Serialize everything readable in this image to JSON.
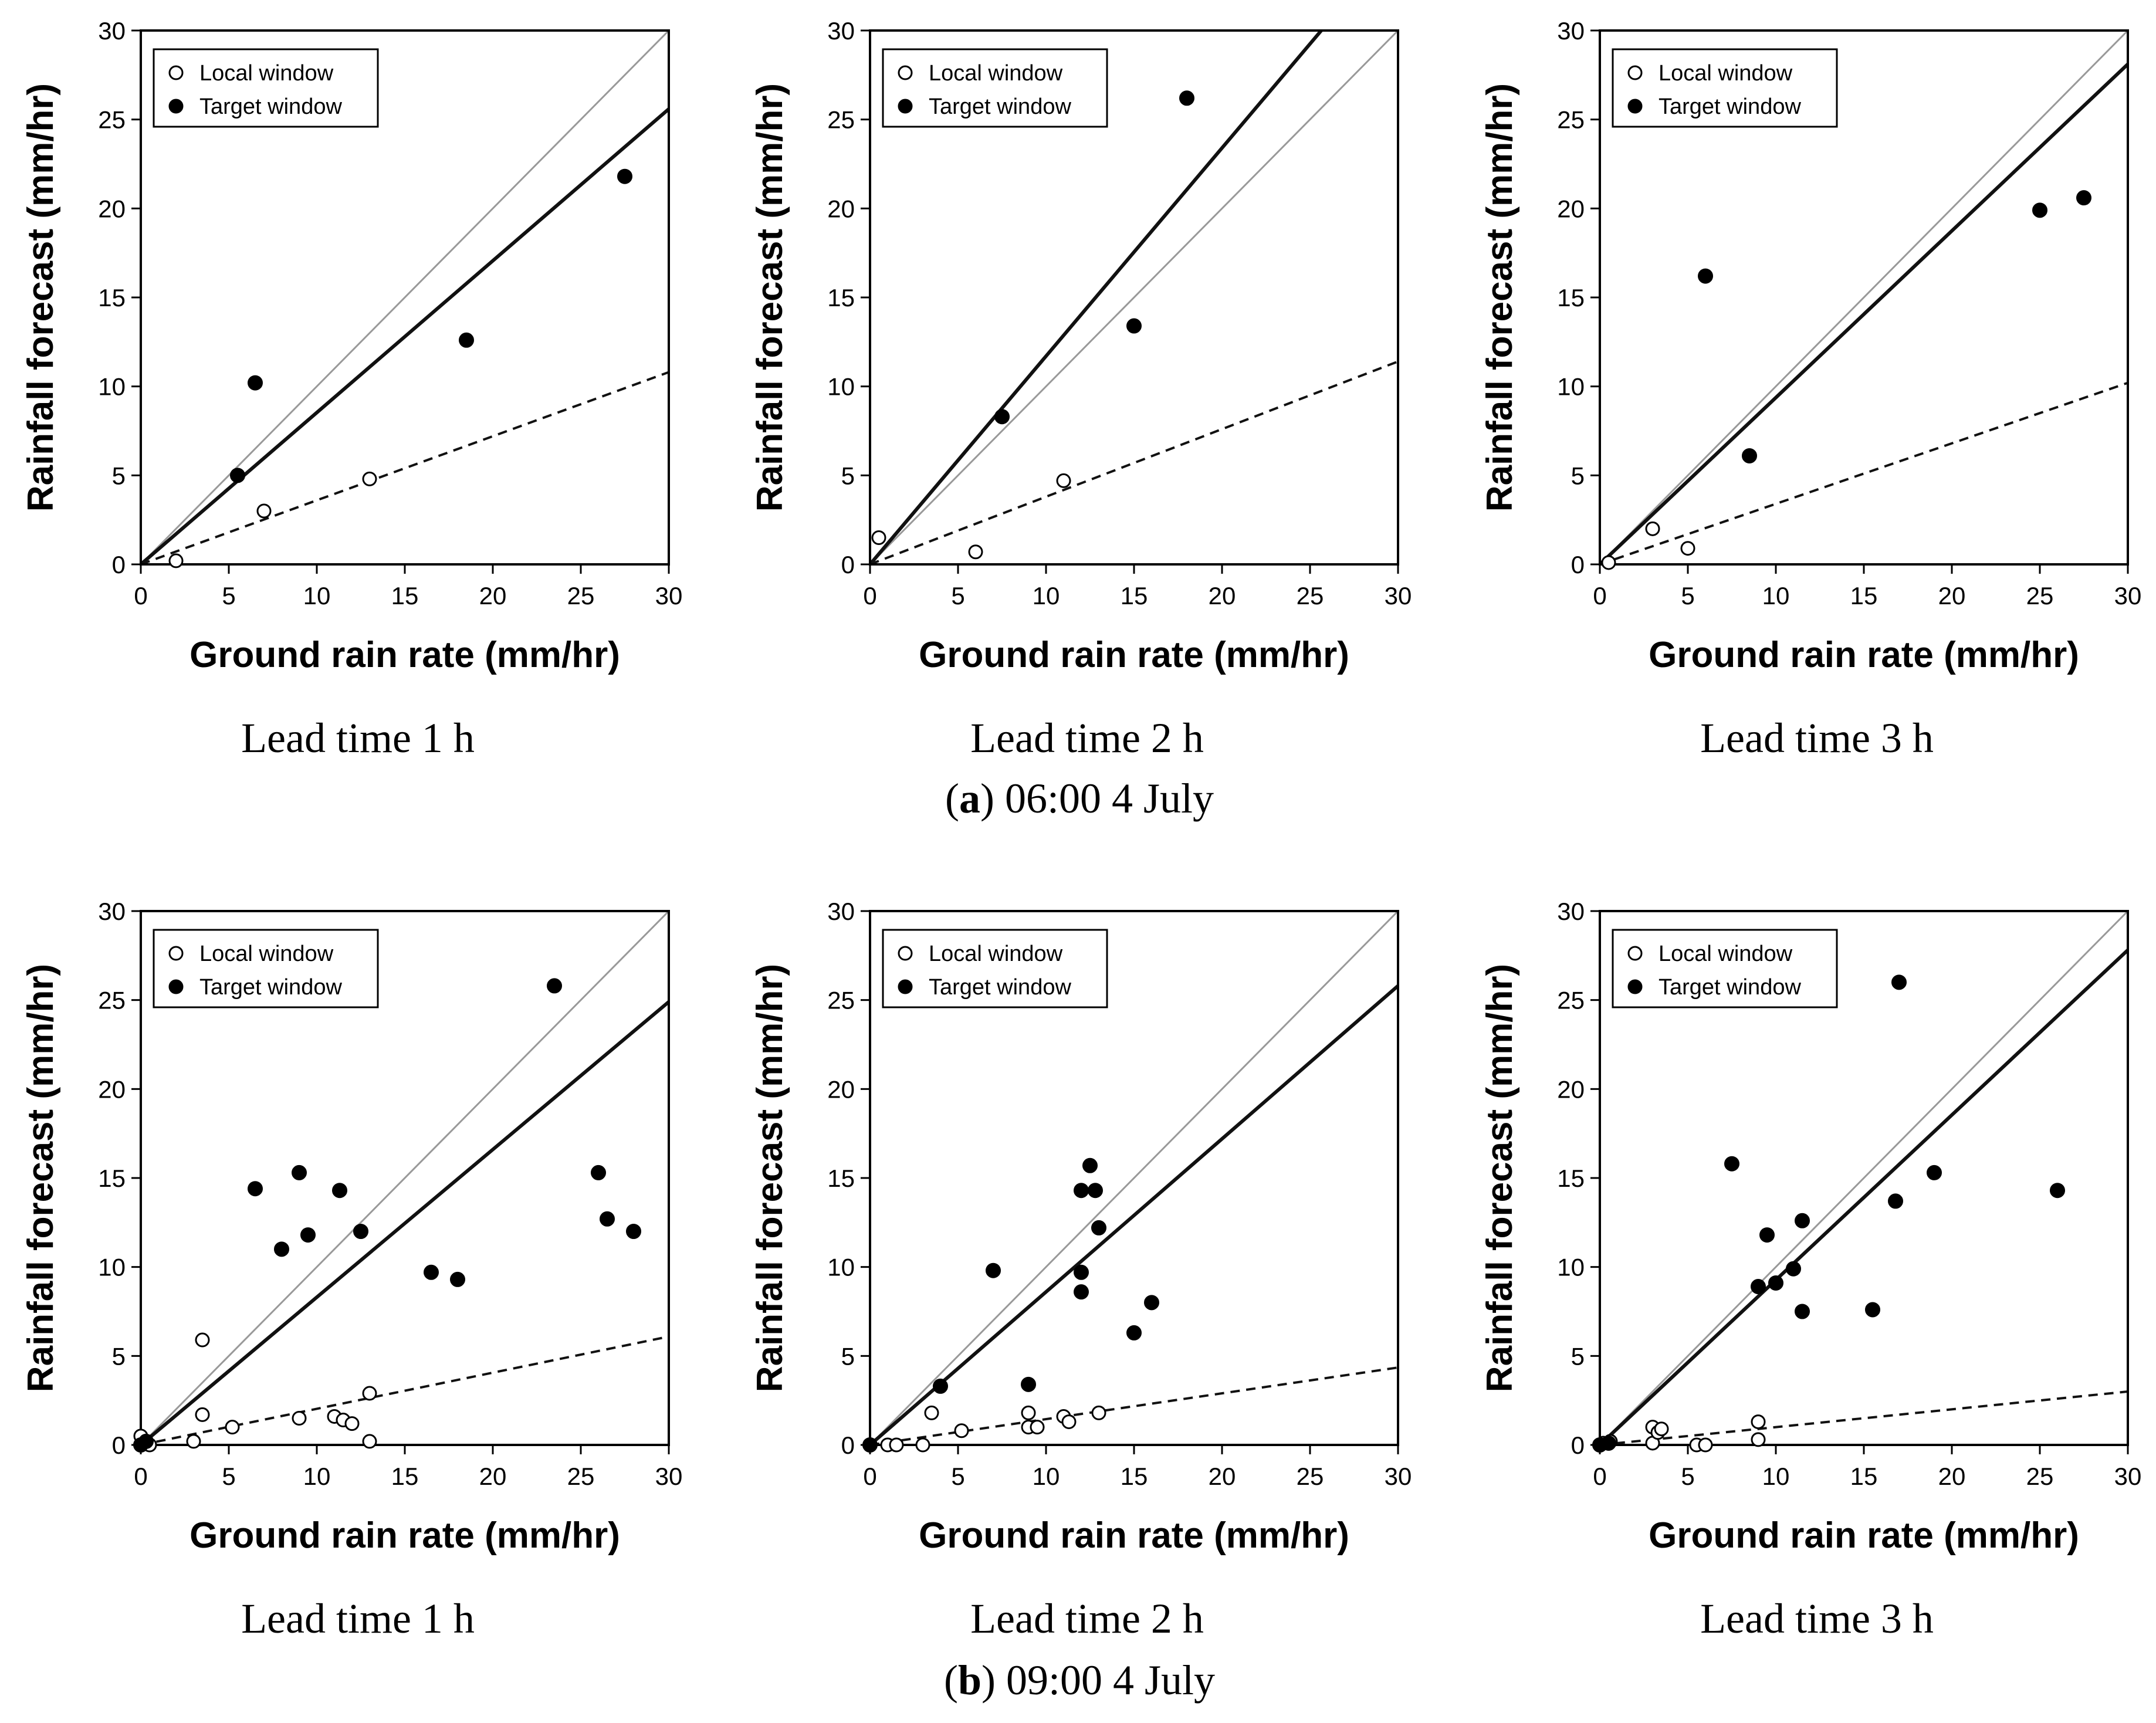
{
  "chart_data": [
    {
      "type": "scatter",
      "group": "a",
      "panel_label": "Lead time 1 h",
      "xlabel": "Ground rain rate (mm/hr)",
      "ylabel": "Rainfall forecast (mm/hr)",
      "xlim": [
        0,
        30
      ],
      "ylim": [
        0,
        30
      ],
      "xticks": [
        "0",
        "5",
        "10",
        "15",
        "20",
        "25",
        "30"
      ],
      "yticks": [
        "0",
        "5",
        "10",
        "15",
        "20",
        "25",
        "30"
      ],
      "legend_position": "top-left",
      "series": [
        {
          "name": "Local window",
          "marker": "open-circle",
          "points": [
            [
              2,
              0.2
            ],
            [
              7,
              3
            ],
            [
              13,
              4.8
            ]
          ]
        },
        {
          "name": "Target window",
          "marker": "filled-circle",
          "points": [
            [
              5.5,
              5
            ],
            [
              6.5,
              10.2
            ],
            [
              18.5,
              12.6
            ],
            [
              27.5,
              21.8
            ]
          ]
        }
      ],
      "lines": [
        {
          "name": "1:1 line",
          "style": "thin-gray",
          "slope": 1
        },
        {
          "name": "Target window fit",
          "style": "thick-solid",
          "slope": 0.853
        },
        {
          "name": "Local window fit",
          "style": "dashed",
          "slope": 0.36
        }
      ]
    },
    {
      "type": "scatter",
      "group": "a",
      "panel_label": "Lead time 2 h",
      "xlabel": "Ground rain rate (mm/hr)",
      "ylabel": "Rainfall forecast (mm/hr)",
      "xlim": [
        0,
        30
      ],
      "ylim": [
        0,
        30
      ],
      "xticks": [
        "0",
        "5",
        "10",
        "15",
        "20",
        "25",
        "30"
      ],
      "yticks": [
        "0",
        "5",
        "10",
        "15",
        "20",
        "25",
        "30"
      ],
      "legend_position": "top-left",
      "series": [
        {
          "name": "Local window",
          "marker": "open-circle",
          "points": [
            [
              0.5,
              1.5
            ],
            [
              6,
              0.7
            ],
            [
              11,
              4.7
            ]
          ]
        },
        {
          "name": "Target window",
          "marker": "filled-circle",
          "points": [
            [
              7.5,
              8.3
            ],
            [
              15,
              13.4
            ],
            [
              18,
              26.2
            ]
          ]
        }
      ],
      "lines": [
        {
          "name": "1:1 line",
          "style": "thin-gray",
          "slope": 1
        },
        {
          "name": "Target window fit",
          "style": "thick-solid",
          "slope": 1.17
        },
        {
          "name": "Local window fit",
          "style": "dashed",
          "slope": 0.38
        }
      ]
    },
    {
      "type": "scatter",
      "group": "a",
      "panel_label": "Lead time 3 h",
      "xlabel": "Ground rain rate (mm/hr)",
      "ylabel": "Rainfall forecast (mm/hr)",
      "xlim": [
        0,
        30
      ],
      "ylim": [
        0,
        30
      ],
      "xticks": [
        "0",
        "5",
        "10",
        "15",
        "20",
        "25",
        "30"
      ],
      "yticks": [
        "0",
        "5",
        "10",
        "15",
        "20",
        "25",
        "30"
      ],
      "legend_position": "top-left",
      "series": [
        {
          "name": "Local window",
          "marker": "open-circle",
          "points": [
            [
              0.5,
              0.1
            ],
            [
              3,
              2
            ],
            [
              5,
              0.9
            ]
          ]
        },
        {
          "name": "Target window",
          "marker": "filled-circle",
          "points": [
            [
              6,
              16.2
            ],
            [
              8.5,
              6.1
            ],
            [
              25,
              19.9
            ],
            [
              27.5,
              20.6
            ]
          ]
        }
      ],
      "lines": [
        {
          "name": "1:1 line",
          "style": "thin-gray",
          "slope": 1
        },
        {
          "name": "Target window fit",
          "style": "thick-solid",
          "slope": 0.937
        },
        {
          "name": "Local window fit",
          "style": "dashed",
          "slope": 0.34
        }
      ]
    },
    {
      "type": "scatter",
      "group": "b",
      "panel_label": "Lead time 1 h",
      "xlabel": "Ground rain rate (mm/hr)",
      "ylabel": "Rainfall forecast (mm/hr)",
      "xlim": [
        0,
        30
      ],
      "ylim": [
        0,
        30
      ],
      "xticks": [
        "0",
        "5",
        "10",
        "15",
        "20",
        "25",
        "30"
      ],
      "yticks": [
        "0",
        "5",
        "10",
        "15",
        "20",
        "25",
        "30"
      ],
      "legend_position": "top-left",
      "series": [
        {
          "name": "Local window",
          "marker": "open-circle",
          "points": [
            [
              0,
              0.5
            ],
            [
              0.5,
              0
            ],
            [
              3,
              0.2
            ],
            [
              3.5,
              5.9
            ],
            [
              3.5,
              1.7
            ],
            [
              5.2,
              1
            ],
            [
              9,
              1.5
            ],
            [
              11,
              1.6
            ],
            [
              11.5,
              1.4
            ],
            [
              12,
              1.2
            ],
            [
              13,
              2.9
            ],
            [
              13,
              0.2
            ]
          ]
        },
        {
          "name": "Target window",
          "marker": "filled-circle",
          "points": [
            [
              0,
              0
            ],
            [
              0.3,
              0.2
            ],
            [
              6.5,
              14.4
            ],
            [
              8,
              11
            ],
            [
              9,
              15.3
            ],
            [
              9.5,
              11.8
            ],
            [
              11.3,
              14.3
            ],
            [
              12.5,
              12
            ],
            [
              16.5,
              9.7
            ],
            [
              18,
              9.3
            ],
            [
              23.5,
              25.8
            ],
            [
              26,
              15.3
            ],
            [
              26.5,
              12.7
            ],
            [
              28,
              12
            ]
          ]
        }
      ],
      "lines": [
        {
          "name": "1:1 line",
          "style": "thin-gray",
          "slope": 1
        },
        {
          "name": "Target window fit",
          "style": "thick-solid",
          "slope": 0.83
        },
        {
          "name": "Local window fit",
          "style": "dashed",
          "slope": 0.203
        }
      ]
    },
    {
      "type": "scatter",
      "group": "b",
      "panel_label": "Lead time 2 h",
      "xlabel": "Ground rain rate (mm/hr)",
      "ylabel": "Rainfall forecast (mm/hr)",
      "xlim": [
        0,
        30
      ],
      "ylim": [
        0,
        30
      ],
      "xticks": [
        "0",
        "5",
        "10",
        "15",
        "20",
        "25",
        "30"
      ],
      "yticks": [
        "0",
        "5",
        "10",
        "15",
        "20",
        "25",
        "30"
      ],
      "legend_position": "top-left",
      "series": [
        {
          "name": "Local window",
          "marker": "open-circle",
          "points": [
            [
              0,
              0
            ],
            [
              1,
              0
            ],
            [
              1.5,
              0
            ],
            [
              3,
              0
            ],
            [
              3.5,
              1.8
            ],
            [
              5.2,
              0.8
            ],
            [
              9,
              1.8
            ],
            [
              9,
              1
            ],
            [
              9.5,
              1
            ],
            [
              11,
              1.6
            ],
            [
              11.3,
              1.3
            ],
            [
              13,
              1.8
            ]
          ]
        },
        {
          "name": "Target window",
          "marker": "filled-circle",
          "points": [
            [
              0,
              0
            ],
            [
              4,
              3.3
            ],
            [
              7,
              9.8
            ],
            [
              9,
              3.4
            ],
            [
              12,
              14.3
            ],
            [
              12,
              9.7
            ],
            [
              12,
              8.6
            ],
            [
              12.5,
              15.7
            ],
            [
              12.8,
              14.3
            ],
            [
              13,
              12.2
            ],
            [
              15,
              6.3
            ],
            [
              16,
              8
            ]
          ]
        }
      ],
      "lines": [
        {
          "name": "1:1 line",
          "style": "thin-gray",
          "slope": 1
        },
        {
          "name": "Target window fit",
          "style": "thick-solid",
          "slope": 0.86
        },
        {
          "name": "Local window fit",
          "style": "dashed",
          "slope": 0.145
        }
      ]
    },
    {
      "type": "scatter",
      "group": "b",
      "panel_label": "Lead time 3 h",
      "xlabel": "Ground rain rate (mm/hr)",
      "ylabel": "Rainfall forecast (mm/hr)",
      "xlim": [
        0,
        30
      ],
      "ylim": [
        0,
        30
      ],
      "xticks": [
        "0",
        "5",
        "10",
        "15",
        "20",
        "25",
        "30"
      ],
      "yticks": [
        "0",
        "5",
        "10",
        "15",
        "20",
        "25",
        "30"
      ],
      "legend_position": "top-left",
      "series": [
        {
          "name": "Local window",
          "marker": "open-circle",
          "points": [
            [
              0.2,
              0.1
            ],
            [
              0.6,
              0.2
            ],
            [
              3,
              1
            ],
            [
              3,
              0.1
            ],
            [
              3.3,
              0.7
            ],
            [
              3.5,
              0.9
            ],
            [
              5.5,
              0
            ],
            [
              6,
              0
            ],
            [
              9,
              1.3
            ],
            [
              9,
              0.3
            ]
          ]
        },
        {
          "name": "Target window",
          "marker": "filled-circle",
          "points": [
            [
              0,
              0
            ],
            [
              0.5,
              0.1
            ],
            [
              7.5,
              15.8
            ],
            [
              9,
              8.9
            ],
            [
              9.5,
              11.8
            ],
            [
              10,
              9.1
            ],
            [
              11,
              9.9
            ],
            [
              11.5,
              12.6
            ],
            [
              11.5,
              7.5
            ],
            [
              15.5,
              7.6
            ],
            [
              16.8,
              13.7
            ],
            [
              17,
              26
            ],
            [
              19,
              15.3
            ],
            [
              26,
              14.3
            ]
          ]
        }
      ],
      "lines": [
        {
          "name": "1:1 line",
          "style": "thin-gray",
          "slope": 1
        },
        {
          "name": "Target window fit",
          "style": "thick-solid",
          "slope": 0.927
        },
        {
          "name": "Local window fit",
          "style": "dashed",
          "slope": 0.1
        }
      ]
    }
  ],
  "captions": {
    "a": {
      "letter": "a",
      "text": ") 06:00 4 July",
      "open": "("
    },
    "b": {
      "letter": "b",
      "text": ") 09:00 4 July",
      "open": "("
    }
  },
  "colors": {
    "axis": "#000000",
    "one_to_one": "#999999",
    "fit": "#111111",
    "marker": "#000000"
  }
}
